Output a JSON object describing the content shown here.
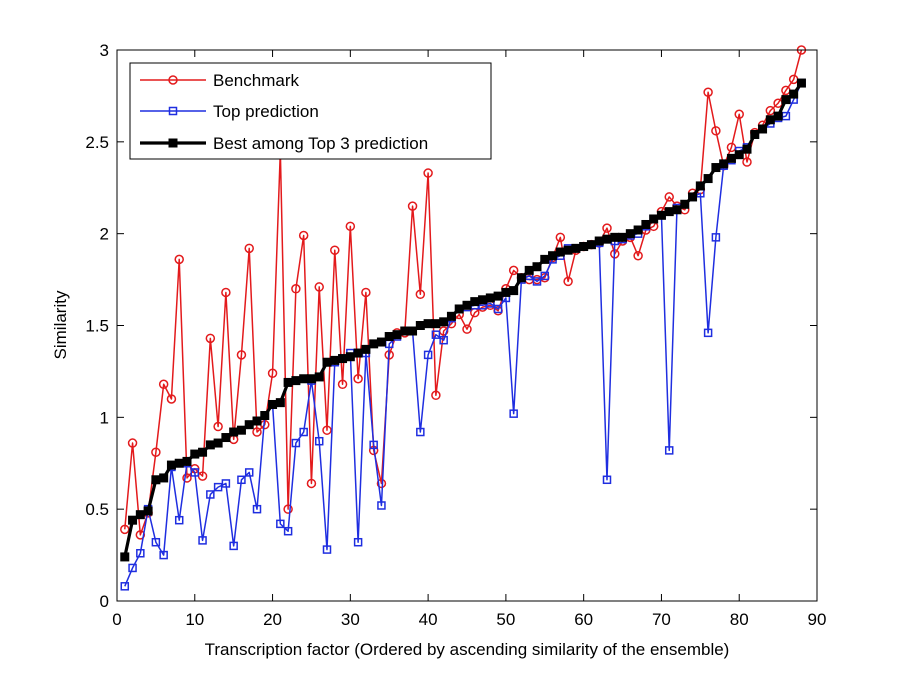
{
  "chart_data": {
    "type": "line",
    "title": "",
    "xlabel": "Transcription factor (Ordered by ascending similarity of the ensemble)",
    "ylabel": "Similarity",
    "xlim": [
      0,
      90
    ],
    "ylim": [
      0,
      3
    ],
    "xticks": [
      0,
      10,
      20,
      30,
      40,
      50,
      60,
      70,
      80,
      90
    ],
    "yticks": [
      0,
      0.5,
      1,
      1.5,
      2,
      2.5,
      3
    ],
    "xtick_labels": [
      "0",
      "10",
      "20",
      "30",
      "40",
      "50",
      "60",
      "70",
      "80",
      "90"
    ],
    "ytick_labels": [
      "0",
      "0.5",
      "1",
      "1.5",
      "2",
      "2.5",
      "3"
    ],
    "grid": false,
    "legend_position": "top-left",
    "x": [
      1,
      2,
      3,
      4,
      5,
      6,
      7,
      8,
      9,
      10,
      11,
      12,
      13,
      14,
      15,
      16,
      17,
      18,
      19,
      20,
      21,
      22,
      23,
      24,
      25,
      26,
      27,
      28,
      29,
      30,
      31,
      32,
      33,
      34,
      35,
      36,
      37,
      38,
      39,
      40,
      41,
      42,
      43,
      44,
      45,
      46,
      47,
      48,
      49,
      50,
      51,
      52,
      53,
      54,
      55,
      56,
      57,
      58,
      59,
      60,
      61,
      62,
      63,
      64,
      65,
      66,
      67,
      68,
      69,
      70,
      71,
      72,
      73,
      74,
      75,
      76,
      77,
      78,
      79,
      80,
      81,
      82,
      83,
      84,
      85,
      86,
      87,
      88
    ],
    "series": [
      {
        "name": "Benchmark",
        "color": "#e31a1c",
        "marker": "circle",
        "values": [
          0.39,
          0.86,
          0.36,
          0.48,
          0.81,
          1.18,
          1.1,
          1.86,
          0.67,
          0.72,
          0.68,
          1.43,
          0.95,
          1.68,
          0.88,
          1.34,
          1.92,
          0.92,
          0.96,
          1.24,
          2.45,
          0.5,
          1.7,
          1.99,
          0.64,
          1.71,
          0.93,
          1.91,
          1.18,
          2.04,
          1.21,
          1.68,
          0.82,
          0.64,
          1.34,
          1.46,
          1.46,
          2.15,
          1.67,
          2.33,
          1.12,
          1.47,
          1.51,
          1.56,
          1.48,
          1.57,
          1.6,
          1.61,
          1.58,
          1.7,
          1.8,
          1.76,
          1.75,
          1.75,
          1.76,
          1.87,
          1.98,
          1.74,
          1.91,
          1.93,
          1.94,
          1.95,
          2.03,
          1.89,
          1.96,
          1.98,
          1.88,
          2.02,
          2.04,
          2.12,
          2.2,
          2.15,
          2.13,
          2.22,
          2.24,
          2.77,
          2.56,
          2.37,
          2.47,
          2.65,
          2.39,
          2.55,
          2.59,
          2.67,
          2.71,
          2.78,
          2.84,
          3.0
        ]
      },
      {
        "name": "Top prediction",
        "color": "#1f2ee0",
        "marker": "square",
        "values": [
          0.08,
          0.18,
          0.26,
          0.5,
          0.32,
          0.25,
          0.73,
          0.44,
          0.75,
          0.7,
          0.33,
          0.58,
          0.62,
          0.64,
          0.3,
          0.66,
          0.7,
          0.5,
          1.01,
          1.07,
          0.42,
          0.38,
          0.86,
          0.92,
          1.2,
          0.87,
          0.28,
          1.3,
          1.32,
          1.35,
          0.32,
          1.35,
          0.85,
          0.52,
          1.4,
          1.44,
          1.47,
          1.47,
          0.92,
          1.34,
          1.45,
          1.42,
          1.54,
          1.59,
          1.6,
          1.61,
          1.61,
          1.62,
          1.59,
          1.65,
          1.02,
          1.75,
          1.77,
          1.74,
          1.77,
          1.86,
          1.88,
          1.92,
          1.92,
          1.93,
          1.94,
          1.95,
          0.66,
          1.96,
          1.97,
          1.99,
          2.0,
          2.04,
          2.08,
          2.1,
          0.82,
          2.14,
          2.16,
          2.2,
          2.22,
          1.46,
          1.98,
          2.37,
          2.4,
          2.45,
          2.47,
          2.54,
          2.57,
          2.6,
          2.63,
          2.64,
          2.73,
          2.82
        ]
      },
      {
        "name": "Best among Top 3 prediction",
        "color": "#000000",
        "marker": "filled-square",
        "values": [
          0.24,
          0.44,
          0.47,
          0.49,
          0.66,
          0.67,
          0.74,
          0.75,
          0.76,
          0.8,
          0.81,
          0.85,
          0.86,
          0.89,
          0.92,
          0.93,
          0.96,
          0.98,
          1.01,
          1.07,
          1.08,
          1.19,
          1.2,
          1.21,
          1.21,
          1.22,
          1.3,
          1.31,
          1.32,
          1.33,
          1.35,
          1.37,
          1.4,
          1.41,
          1.44,
          1.45,
          1.47,
          1.47,
          1.5,
          1.51,
          1.51,
          1.52,
          1.55,
          1.59,
          1.61,
          1.63,
          1.64,
          1.65,
          1.66,
          1.68,
          1.69,
          1.76,
          1.8,
          1.82,
          1.86,
          1.88,
          1.9,
          1.91,
          1.92,
          1.93,
          1.94,
          1.96,
          1.97,
          1.98,
          1.98,
          2.0,
          2.02,
          2.05,
          2.08,
          2.1,
          2.12,
          2.13,
          2.16,
          2.2,
          2.26,
          2.3,
          2.36,
          2.38,
          2.41,
          2.43,
          2.46,
          2.54,
          2.57,
          2.62,
          2.64,
          2.73,
          2.76,
          2.82
        ]
      }
    ]
  }
}
